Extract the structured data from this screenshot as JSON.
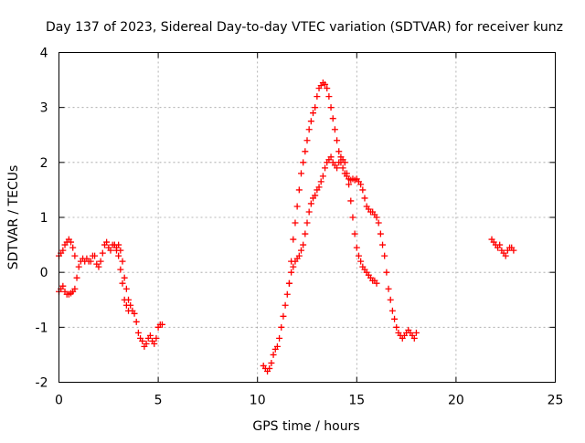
{
  "chart_data": {
    "type": "scatter",
    "title": "Day 137 of 2023, Sidereal Day-to-day VTEC variation (SDTVAR) for receiver kunz",
    "xlabel": "GPS time / hours",
    "ylabel": "SDTVAR / TECUs",
    "xlim": [
      0,
      25
    ],
    "ylim": [
      -2,
      4
    ],
    "xticks": [
      0,
      5,
      10,
      15,
      20,
      25
    ],
    "yticks": [
      -2,
      -1,
      0,
      1,
      2,
      3,
      4
    ],
    "grid": true,
    "marker": "plus",
    "color": "#ff0000",
    "series": [
      {
        "name": "segment-1",
        "x": [
          0.0,
          0.1,
          0.2,
          0.3,
          0.4,
          0.5,
          0.6,
          0.7,
          0.8
        ],
        "y": [
          0.3,
          0.35,
          0.4,
          0.5,
          0.55,
          0.6,
          0.55,
          0.45,
          0.3
        ]
      },
      {
        "name": "segment-2",
        "x": [
          0.0,
          0.1,
          0.2,
          0.3,
          0.4,
          0.5,
          0.6,
          0.7,
          0.8,
          0.9,
          1.0,
          1.1,
          1.2,
          1.3,
          1.4,
          1.5,
          1.6,
          1.7,
          1.8,
          1.9,
          2.0,
          2.1,
          2.2,
          2.3,
          2.4,
          2.5,
          2.6,
          2.7,
          2.8,
          2.9,
          3.0,
          3.1,
          3.2,
          3.3,
          3.4,
          3.5,
          3.6,
          3.7,
          3.8,
          3.9,
          4.0,
          4.1,
          4.2,
          4.3,
          4.4,
          4.5,
          4.6,
          4.7,
          4.8,
          4.9,
          5.0,
          5.1,
          5.2
        ],
        "y": [
          -0.35,
          -0.3,
          -0.25,
          -0.35,
          -0.4,
          -0.4,
          -0.38,
          -0.35,
          -0.3,
          -0.1,
          0.1,
          0.2,
          0.25,
          0.2,
          0.25,
          0.2,
          0.2,
          0.3,
          0.3,
          0.15,
          0.1,
          0.2,
          0.35,
          0.5,
          0.55,
          0.45,
          0.4,
          0.5,
          0.5,
          0.45,
          0.5,
          0.4,
          0.2,
          -0.1,
          -0.3,
          -0.5,
          -0.6,
          -0.7,
          -0.75,
          -0.9,
          -1.1,
          -1.2,
          -1.25,
          -1.35,
          -1.3,
          -1.2,
          -1.15,
          -1.25,
          -1.3,
          -1.2,
          -1.0,
          -0.95,
          -0.95
        ]
      },
      {
        "name": "segment-3",
        "x": [
          2.8,
          2.9,
          3.0,
          3.1,
          3.2,
          3.3,
          3.4,
          3.5
        ],
        "y": [
          0.5,
          0.4,
          0.3,
          0.05,
          -0.2,
          -0.5,
          -0.6,
          -0.7
        ]
      },
      {
        "name": "segment-4",
        "x": [
          10.3,
          10.4,
          10.5,
          10.6,
          10.7,
          10.8,
          10.9,
          11.0,
          11.1,
          11.2,
          11.3,
          11.4,
          11.5,
          11.6,
          11.7,
          11.8,
          11.9,
          12.0,
          12.1,
          12.2,
          12.3,
          12.4,
          12.5,
          12.6,
          12.7,
          12.8,
          12.9,
          13.0,
          13.1,
          13.2,
          13.3,
          13.4,
          13.5,
          13.6,
          13.7,
          13.8,
          13.9,
          14.0,
          14.1,
          14.2,
          14.3,
          14.4,
          14.5,
          14.6,
          14.7,
          14.8,
          14.9,
          15.0,
          15.1,
          15.2,
          15.3,
          15.4,
          15.5,
          15.6,
          15.7,
          15.8,
          15.9,
          16.0
        ],
        "y": [
          -1.7,
          -1.75,
          -1.8,
          -1.75,
          -1.65,
          -1.5,
          -1.4,
          -1.35,
          -1.2,
          -1.0,
          -0.8,
          -0.6,
          -0.4,
          -0.2,
          0.0,
          0.1,
          0.2,
          0.25,
          0.3,
          0.4,
          0.5,
          0.7,
          0.9,
          1.1,
          1.25,
          1.35,
          1.4,
          1.5,
          1.55,
          1.65,
          1.75,
          1.9,
          2.0,
          2.05,
          2.1,
          2.0,
          1.95,
          1.9,
          2.0,
          2.1,
          2.05,
          2.0,
          1.8,
          1.6,
          1.3,
          1.0,
          0.7,
          0.45,
          0.3,
          0.2,
          0.1,
          0.05,
          0.0,
          -0.05,
          -0.1,
          -0.15,
          -0.15,
          -0.2
        ]
      },
      {
        "name": "segment-5",
        "x": [
          11.6,
          11.7,
          11.8,
          11.9,
          12.0,
          12.1,
          12.2,
          12.3,
          12.4,
          12.5,
          12.6,
          12.7,
          12.8,
          12.9,
          13.0,
          13.1,
          13.2,
          13.3,
          13.4,
          13.5,
          13.6,
          13.7,
          13.8,
          13.9,
          14.0,
          14.1,
          14.2,
          14.3,
          14.4,
          14.5,
          14.6,
          14.7,
          14.8,
          14.9,
          15.0,
          15.1,
          15.2,
          15.3,
          15.4,
          15.5,
          15.6,
          15.7,
          15.8,
          15.9,
          16.0,
          16.1,
          16.2,
          16.3,
          16.4,
          16.5,
          16.6,
          16.7,
          16.8,
          16.9,
          17.0,
          17.1,
          17.2,
          17.3,
          17.4,
          17.5,
          17.6,
          17.7,
          17.8,
          17.9,
          18.0
        ],
        "y": [
          -0.2,
          0.2,
          0.6,
          0.9,
          1.2,
          1.5,
          1.8,
          2.0,
          2.2,
          2.4,
          2.6,
          2.75,
          2.9,
          3.0,
          3.2,
          3.35,
          3.4,
          3.45,
          3.42,
          3.35,
          3.2,
          3.0,
          2.8,
          2.6,
          2.4,
          2.2,
          2.0,
          1.9,
          1.8,
          1.75,
          1.7,
          1.68,
          1.7,
          1.68,
          1.7,
          1.65,
          1.6,
          1.5,
          1.35,
          1.2,
          1.15,
          1.1,
          1.1,
          1.05,
          1.0,
          0.9,
          0.7,
          0.5,
          0.3,
          0.0,
          -0.3,
          -0.5,
          -0.7,
          -0.85,
          -1.0,
          -1.1,
          -1.15,
          -1.2,
          -1.15,
          -1.1,
          -1.05,
          -1.1,
          -1.15,
          -1.2,
          -1.1
        ]
      },
      {
        "name": "segment-6",
        "x": [
          21.8,
          21.9,
          22.0,
          22.1,
          22.2,
          22.3,
          22.4,
          22.5,
          22.6,
          22.7,
          22.8,
          22.9
        ],
        "y": [
          0.6,
          0.55,
          0.5,
          0.45,
          0.5,
          0.4,
          0.35,
          0.3,
          0.4,
          0.45,
          0.45,
          0.4
        ]
      }
    ]
  }
}
